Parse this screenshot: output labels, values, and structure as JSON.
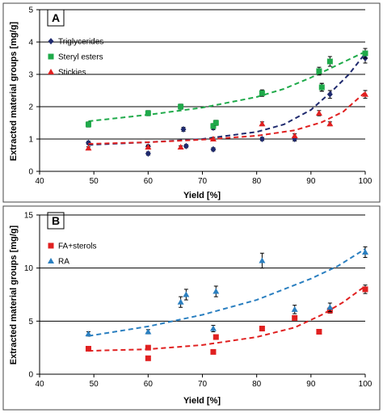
{
  "chart_data": [
    {
      "type": "scatter",
      "panel_label": "A",
      "xlabel": "Yield [%]",
      "ylabel": "Extracted material groups [mg/g]",
      "xlim": [
        40,
        100
      ],
      "ylim": [
        0,
        5
      ],
      "xticks": [
        40,
        50,
        60,
        70,
        80,
        90,
        100
      ],
      "yticks": [
        0,
        1,
        2,
        3,
        4,
        5
      ],
      "grid": "horizontal",
      "legend_position": "top-left",
      "series": [
        {
          "name": "Triglycerides",
          "color": "#1f2a6e",
          "marker": "diamond",
          "trend": "exponential",
          "x": [
            49,
            60,
            60,
            66.5,
            67,
            72,
            72,
            81,
            87,
            92,
            93.5,
            100
          ],
          "y": [
            0.88,
            0.55,
            0.77,
            1.3,
            0.78,
            0.68,
            1.35,
            1.0,
            1.0,
            2.6,
            2.38,
            3.5
          ],
          "err": [
            0.05,
            0.05,
            0.05,
            0.06,
            0.05,
            0.05,
            0.06,
            0.05,
            0.06,
            0.12,
            0.12,
            0.15
          ],
          "trend_points": [
            [
              49,
              0.82
            ],
            [
              60,
              0.9
            ],
            [
              70,
              1.0
            ],
            [
              80,
              1.22
            ],
            [
              85,
              1.45
            ],
            [
              90,
              1.9
            ],
            [
              94,
              2.5
            ],
            [
              97,
              3.0
            ],
            [
              100,
              3.65
            ]
          ]
        },
        {
          "name": "Steryl esters",
          "color": "#1faa4a",
          "marker": "square",
          "trend": "exponential",
          "x": [
            49,
            60,
            66,
            72,
            72.5,
            81,
            91.5,
            92,
            93.5,
            100
          ],
          "y": [
            1.45,
            1.8,
            2.0,
            1.4,
            1.5,
            2.42,
            3.1,
            2.6,
            3.4,
            3.65
          ],
          "err": [
            0.08,
            0.08,
            0.08,
            0.08,
            0.08,
            0.1,
            0.12,
            0.12,
            0.15,
            0.15
          ],
          "trend_points": [
            [
              49,
              1.55
            ],
            [
              60,
              1.75
            ],
            [
              70,
              1.97
            ],
            [
              80,
              2.3
            ],
            [
              85,
              2.55
            ],
            [
              90,
              2.9
            ],
            [
              95,
              3.3
            ],
            [
              100,
              3.7
            ]
          ]
        },
        {
          "name": "Stickies",
          "color": "#e02020",
          "marker": "triangle",
          "trend": "exponential",
          "x": [
            49,
            60,
            66,
            72,
            81,
            87,
            91.5,
            93.5,
            100
          ],
          "y": [
            0.72,
            0.75,
            0.75,
            1.0,
            1.47,
            1.1,
            1.8,
            1.47,
            2.38
          ],
          "err": [
            0.04,
            0.04,
            0.04,
            0.05,
            0.06,
            0.06,
            0.08,
            0.06,
            0.12
          ],
          "trend_points": [
            [
              49,
              0.85
            ],
            [
              60,
              0.9
            ],
            [
              70,
              0.98
            ],
            [
              80,
              1.1
            ],
            [
              87,
              1.27
            ],
            [
              92,
              1.52
            ],
            [
              96,
              1.85
            ],
            [
              100,
              2.45
            ]
          ]
        }
      ]
    },
    {
      "type": "scatter",
      "panel_label": "B",
      "xlabel": "Yield [%]",
      "ylabel": "Extracted material groups [mg/g]",
      "xlim": [
        40,
        100
      ],
      "ylim": [
        0,
        15
      ],
      "xticks": [
        40,
        50,
        60,
        70,
        80,
        90,
        100
      ],
      "yticks": [
        0,
        5,
        10,
        15
      ],
      "grid": "horizontal",
      "legend_position": "top-left",
      "series": [
        {
          "name": "FA+sterols",
          "color": "#e02020",
          "marker": "square",
          "trend": "exponential",
          "x": [
            49,
            60,
            60,
            72,
            72.5,
            81,
            87,
            91.5,
            93.5,
            100
          ],
          "y": [
            2.4,
            1.5,
            2.5,
            2.1,
            3.5,
            4.3,
            5.3,
            4.0,
            6.0,
            8.0
          ],
          "err": [
            0.15,
            0.1,
            0.1,
            0.1,
            0.15,
            0.2,
            0.2,
            0.15,
            0.25,
            0.4
          ],
          "trend_points": [
            [
              49,
              2.2
            ],
            [
              60,
              2.35
            ],
            [
              70,
              2.75
            ],
            [
              80,
              3.5
            ],
            [
              87,
              4.4
            ],
            [
              92,
              5.6
            ],
            [
              96,
              6.8
            ],
            [
              100,
              8.3
            ]
          ]
        },
        {
          "name": "RA",
          "color": "#2a7fc0",
          "marker": "triangle",
          "trend": "exponential",
          "x": [
            49,
            60,
            66,
            67,
            72,
            72.5,
            81,
            87,
            93.5,
            100
          ],
          "y": [
            3.8,
            4.0,
            6.8,
            7.5,
            4.3,
            7.8,
            10.7,
            6.1,
            6.3,
            11.5
          ],
          "err": [
            0.2,
            0.2,
            0.5,
            0.5,
            0.3,
            0.5,
            0.7,
            0.4,
            0.4,
            0.5
          ],
          "trend_points": [
            [
              49,
              3.6
            ],
            [
              60,
              4.5
            ],
            [
              70,
              5.6
            ],
            [
              80,
              7.0
            ],
            [
              90,
              9.0
            ],
            [
              95,
              10.2
            ],
            [
              100,
              11.8
            ]
          ]
        }
      ]
    }
  ]
}
